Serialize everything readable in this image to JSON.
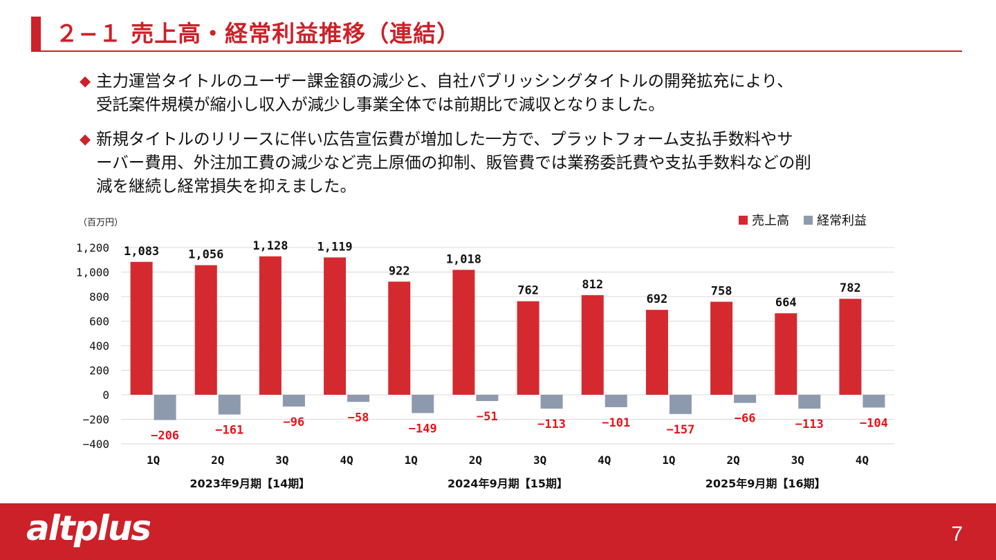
{
  "header": {
    "title": "２−１ 売上高・経常利益推移（連結）"
  },
  "bullets": [
    {
      "mark": "◆",
      "lines": [
        "主力運営タイトルのユーザー課金額の減少と、自社パブリッシングタイトルの開発拡充により、",
        "受託案件規模が縮小し収入が減少し事業全体では前期比で減収となりました。"
      ]
    },
    {
      "mark": "◆",
      "lines": [
        "新規タイトルのリリースに伴い広告宣伝費が増加した一方で、プラットフォーム支払手数料やサ",
        "ーバー費用、外注加工費の減少など売上原価の抑制、販管費では業務委託費や支払手数料などの削",
        "減を継続し経常損失を抑えました。"
      ]
    }
  ],
  "chart_data": {
    "type": "bar",
    "unit_label": "（百万円）",
    "categories": [
      "1Q",
      "2Q",
      "3Q",
      "4Q",
      "1Q",
      "2Q",
      "3Q",
      "4Q",
      "1Q",
      "2Q",
      "3Q",
      "4Q"
    ],
    "groups": [
      {
        "label": "2023年9月期【14期】",
        "quarters": 4
      },
      {
        "label": "2024年9月期【15期】",
        "quarters": 4
      },
      {
        "label": "2025年9月期【16期】",
        "quarters": 4
      }
    ],
    "series": [
      {
        "name": "売上高",
        "color": "#d42a2f",
        "values": [
          1083,
          1056,
          1128,
          1119,
          922,
          1018,
          762,
          812,
          692,
          758,
          664,
          782
        ],
        "labels": [
          "1,083",
          "1,056",
          "1,128",
          "1,119",
          "922",
          "1,018",
          "762",
          "812",
          "692",
          "758",
          "664",
          "782"
        ]
      },
      {
        "name": "経常利益",
        "color": "#8d9aae",
        "values": [
          -206,
          -161,
          -96,
          -58,
          -149,
          -51,
          -113,
          -101,
          -157,
          -66,
          -113,
          -104
        ],
        "labels": [
          "−206",
          "−161",
          "−96",
          "−58",
          "−149",
          "−51",
          "−113",
          "−101",
          "−157",
          "−66",
          "−113",
          "−104"
        ]
      }
    ],
    "ylim": [
      -400,
      1200
    ],
    "yticks": [
      -400,
      -200,
      0,
      200,
      400,
      600,
      800,
      1000,
      1200
    ],
    "ytick_labels": [
      "−400",
      "−200",
      "0",
      "200",
      "400",
      "600",
      "800",
      "1,000",
      "1,200"
    ],
    "grid": true,
    "legend": "top-right",
    "negative_label_color": "#e8121b"
  },
  "footer": {
    "logo_text": "altplus",
    "page_number": "7"
  }
}
